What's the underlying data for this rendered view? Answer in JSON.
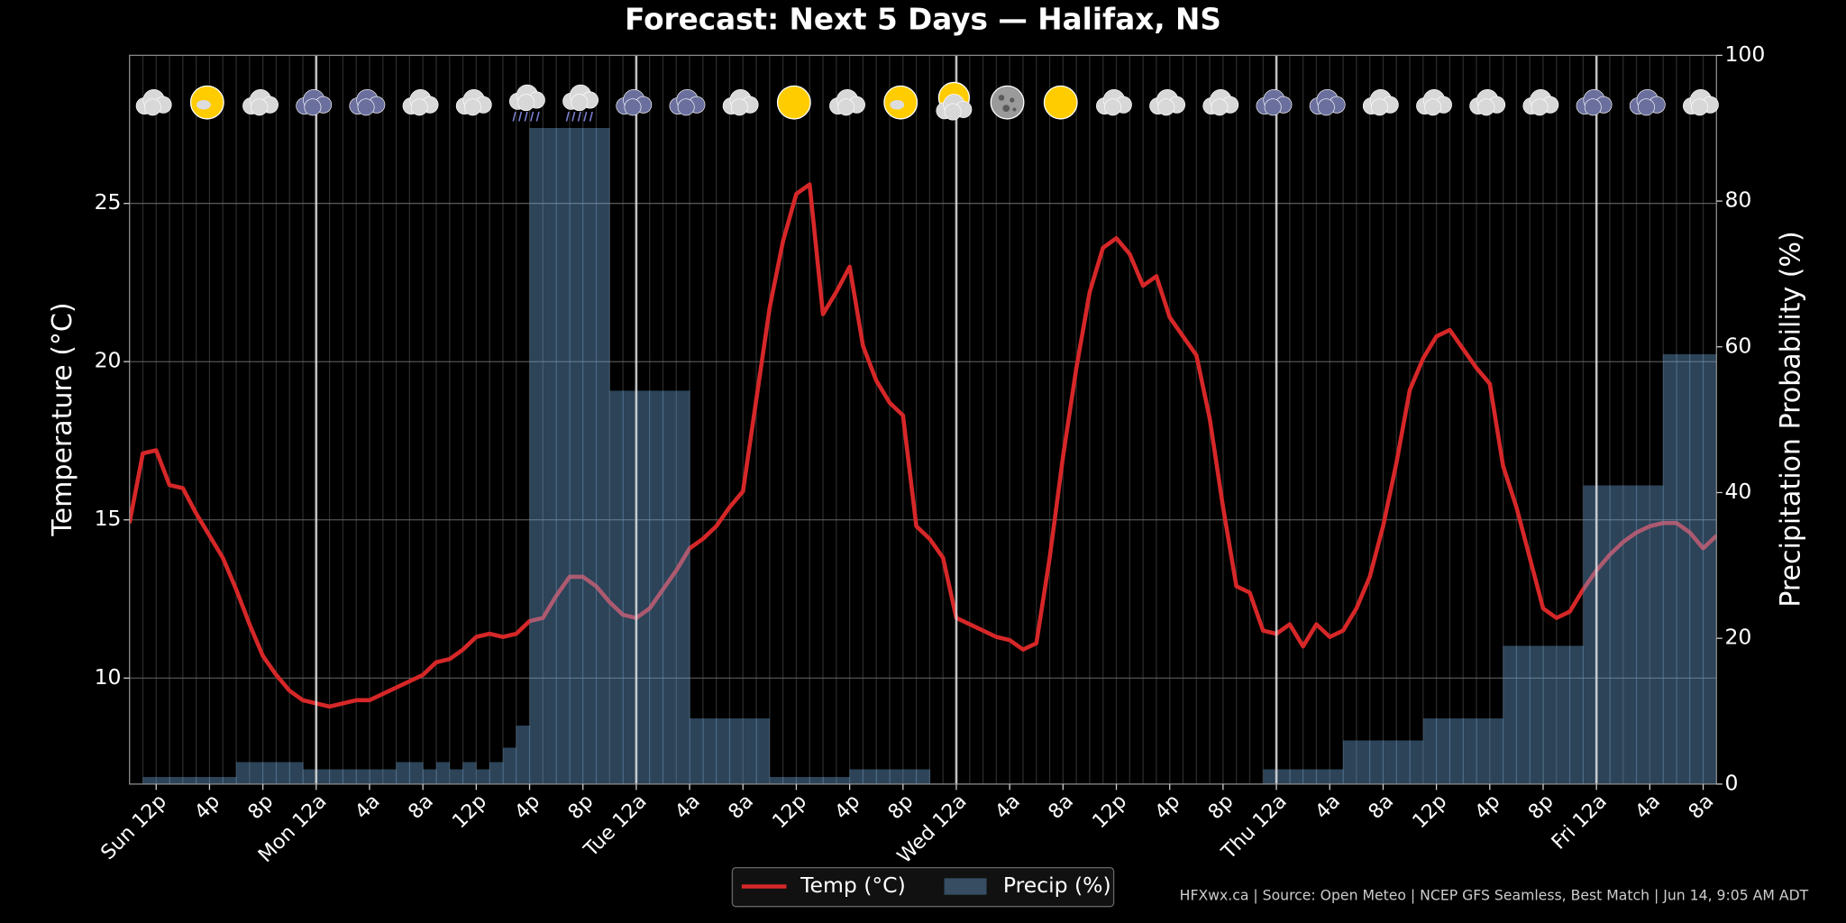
{
  "chart_data": {
    "type": "line",
    "title": "Forecast: Next 5 Days — Halifax, NS",
    "ylabel": "Temperature (°C)",
    "y2label": "Precipitation Probability (%)",
    "source": "HFXwx.ca | Source: Open Meteo | NCEP GFS Seamless, Best Match | Jun 14, 9:05 AM ADT",
    "categories": [
      null,
      null,
      "Sun 12p",
      null,
      null,
      null,
      "4p",
      null,
      null,
      null,
      "8p",
      null,
      null,
      null,
      "Mon 12a",
      null,
      null,
      null,
      "4a",
      null,
      null,
      null,
      "8a",
      null,
      null,
      null,
      "12p",
      null,
      null,
      null,
      "4p",
      null,
      null,
      null,
      "8p",
      null,
      null,
      null,
      "Tue 12a",
      null,
      null,
      null,
      "4a",
      null,
      null,
      null,
      "8a",
      null,
      null,
      null,
      "12p",
      null,
      null,
      null,
      "4p",
      null,
      null,
      null,
      "8p",
      null,
      null,
      null,
      "Wed 12a",
      null,
      null,
      null,
      "4a",
      null,
      null,
      null,
      "8a",
      null,
      null,
      null,
      "12p",
      null,
      null,
      null,
      "4p",
      null,
      null,
      null,
      "8p",
      null,
      null,
      null,
      "Thu 12a",
      null,
      null,
      null,
      "4a",
      null,
      null,
      null,
      "8a",
      null,
      null,
      null,
      "12p",
      null,
      null,
      null,
      "4p",
      null,
      null,
      null,
      "8p",
      null,
      null,
      null,
      "Fri 12a",
      null,
      null,
      null,
      "4a",
      null,
      null,
      null,
      "8a",
      null
    ],
    "series": [
      {
        "name": "Temp (°C)",
        "color": "#d62728",
        "values": [
          14.9,
          17.1,
          17.2,
          16.1,
          16.0,
          15.2,
          14.5,
          13.8,
          12.8,
          11.7,
          10.7,
          10.1,
          9.6,
          9.3,
          9.2,
          9.1,
          9.2,
          9.3,
          9.3,
          9.5,
          9.7,
          9.9,
          10.1,
          10.5,
          10.6,
          10.9,
          11.3,
          11.4,
          11.3,
          11.4,
          11.8,
          11.9,
          12.6,
          13.2,
          13.2,
          12.9,
          12.4,
          12.0,
          11.9,
          12.2,
          12.8,
          13.4,
          14.1,
          14.4,
          14.8,
          15.4,
          15.9,
          18.8,
          21.7,
          23.8,
          25.3,
          25.6,
          21.5,
          22.2,
          23.0,
          20.5,
          19.4,
          18.7,
          18.3,
          14.8,
          14.4,
          13.8,
          11.9,
          11.7,
          11.5,
          11.3,
          11.2,
          10.9,
          11.1,
          13.8,
          17.0,
          19.8,
          22.2,
          23.6,
          23.9,
          23.4,
          22.4,
          22.7,
          21.4,
          20.8,
          20.2,
          18.2,
          15.4,
          12.9,
          12.7,
          11.5,
          11.4,
          11.7,
          11.0,
          11.7,
          11.3,
          11.5,
          12.2,
          13.2,
          14.8,
          16.8,
          19.1,
          20.1,
          20.8,
          21.0,
          20.4,
          19.8,
          19.3,
          16.7,
          15.4,
          13.8,
          12.2,
          11.9,
          12.1,
          12.8,
          13.4,
          13.9,
          14.3,
          14.6,
          14.8,
          14.9,
          14.9,
          14.6,
          14.1,
          14.5
        ]
      },
      {
        "name": "Precip (%)",
        "type": "bar",
        "axis": "y2",
        "color": "#6fa8dc",
        "values": [
          0,
          1,
          1,
          1,
          1,
          1,
          1,
          1,
          3,
          3,
          3,
          3,
          3,
          2,
          2,
          2,
          2,
          2,
          2,
          2,
          3,
          3,
          2,
          3,
          2,
          3,
          2,
          3,
          5,
          8,
          90,
          90,
          90,
          90,
          90,
          90,
          54,
          54,
          54,
          54,
          54,
          54,
          9,
          9,
          9,
          9,
          9,
          9,
          1,
          1,
          1,
          1,
          1,
          1,
          2,
          2,
          2,
          2,
          2,
          2,
          0,
          0,
          0,
          0,
          0,
          0,
          0,
          0,
          0,
          0,
          0,
          0,
          0,
          0,
          0,
          0,
          0,
          0,
          0,
          0,
          0,
          0,
          0,
          0,
          0,
          2,
          2,
          2,
          2,
          2,
          2,
          6,
          6,
          6,
          6,
          6,
          6,
          9,
          9,
          9,
          9,
          9,
          9,
          19,
          19,
          19,
          19,
          19,
          19,
          41,
          41,
          41,
          41,
          41,
          41,
          59,
          59,
          59,
          59,
          59
        ]
      }
    ],
    "ylim": [
      6.65,
      29.68
    ],
    "yticks": [
      10,
      15,
      20,
      25
    ],
    "y2lim": [
      0,
      100
    ],
    "y2ticks": [
      0,
      20,
      40,
      60,
      80,
      100
    ],
    "grid": true,
    "day_boundaries": [
      14,
      38,
      62,
      86,
      110
    ],
    "legend": "bottom"
  }
}
